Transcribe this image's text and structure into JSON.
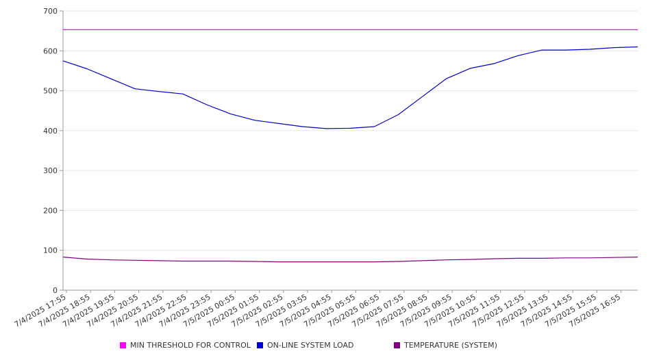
{
  "chart_data": {
    "type": "line",
    "title": "",
    "xlabel": "",
    "ylabel": "",
    "ylim": [
      0,
      700
    ],
    "y_ticks": [
      0,
      100,
      200,
      300,
      400,
      500,
      600,
      700
    ],
    "x_tick_labels": [
      "7/4/2025 17:55",
      "7/4/2025 18:55",
      "7/4/2025 19:55",
      "7/4/2025 20:55",
      "7/4/2025 21:55",
      "7/4/2025 22:55",
      "7/4/2025 23:55",
      "7/5/2025 00:55",
      "7/5/2025 01:55",
      "7/5/2025 02:55",
      "7/5/2025 03:55",
      "7/5/2025 04:55",
      "7/5/2025 05:55",
      "7/5/2025 06:55",
      "7/5/2025 07:55",
      "7/5/2025 08:55",
      "7/5/2025 09:55",
      "7/5/2025 10:55",
      "7/5/2025 11:55",
      "7/5/2025 12:55",
      "7/5/2025 13:55",
      "7/5/2025 14:55",
      "7/5/2025 15:55",
      "7/5/2025 16:55"
    ],
    "grid": true,
    "legend_position": "bottom",
    "series": [
      {
        "name": "MIN THRESHOLD FOR CONTROL",
        "color": "#ff00ff",
        "values": [
          653,
          653,
          653,
          653,
          653,
          653,
          653,
          653,
          653,
          653,
          653,
          653,
          653,
          653,
          653,
          653,
          653,
          653,
          653,
          653,
          653,
          653,
          653,
          653,
          653
        ]
      },
      {
        "name": "ON-LINE SYSTEM LOAD",
        "color": "#0000cc",
        "values": [
          575,
          555,
          530,
          505,
          498,
          492,
          465,
          442,
          426,
          418,
          410,
          405,
          406,
          410,
          440,
          485,
          530,
          556,
          568,
          588,
          602,
          602,
          604,
          608,
          610
        ]
      },
      {
        "name": "TEMPERATURE (SYSTEM)",
        "color": "#800080",
        "values": [
          83,
          78,
          76,
          75,
          74,
          73,
          73,
          73,
          72,
          71,
          71,
          71,
          71,
          71,
          72,
          74,
          76,
          77,
          79,
          80,
          80,
          81,
          81,
          82,
          83
        ]
      }
    ]
  }
}
